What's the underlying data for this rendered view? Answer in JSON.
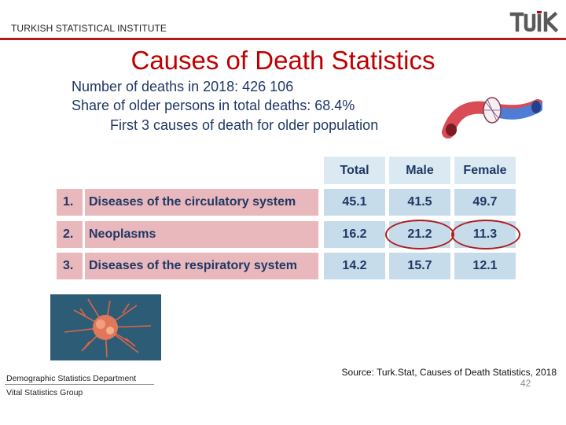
{
  "header": {
    "org": "TURKISH STATISTICAL INSTITUTE",
    "logo_text": "TÜİK",
    "accent": "#b31b1b"
  },
  "title": "Causes of Death Statistics",
  "summary": {
    "line1": "Number of deaths in 2018: 426 106",
    "line2": "Share of older persons in total deaths: 68.4%",
    "line3": "First 3 causes of death for older population"
  },
  "table": {
    "columns": [
      "Total",
      "Male",
      "Female"
    ],
    "rows": [
      {
        "index": "1.",
        "cause": "Diseases of the circulatory system",
        "total": "45.1",
        "male": "41.5",
        "female": "49.7"
      },
      {
        "index": "2.",
        "cause": "Neoplasms",
        "total": "16.2",
        "male": "21.2",
        "female": "11.3"
      },
      {
        "index": "3.",
        "cause": "Diseases of the respiratory system",
        "total": "14.2",
        "male": "15.7",
        "female": "12.1"
      }
    ]
  },
  "images": {
    "heart": "heart-artery-illustration",
    "cancer": "cancer-cell-photo"
  },
  "source": "Source: Turk.Stat, Causes of Death Statistics, 2018",
  "footer": {
    "dept": "Demographic Statistics Department",
    "group": "Vital Statistics Group",
    "page": "42"
  }
}
